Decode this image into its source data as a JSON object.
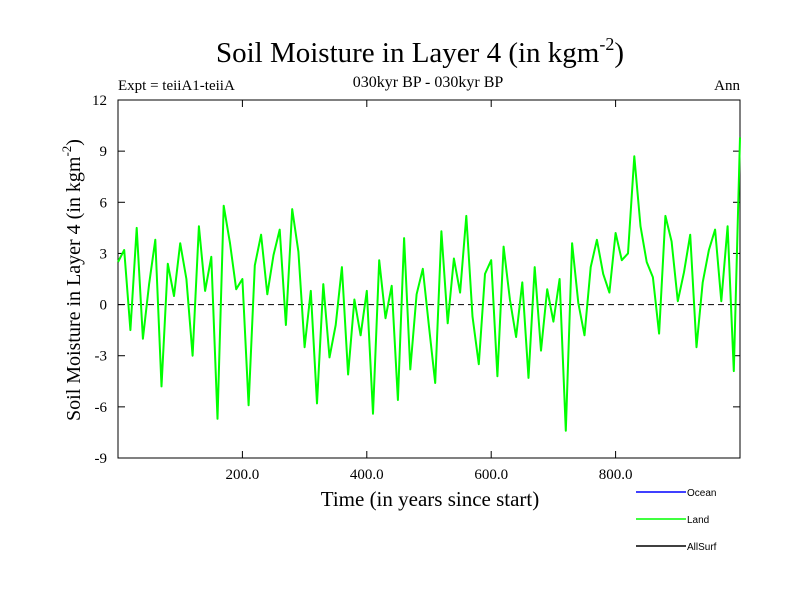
{
  "chart_data": {
    "type": "line",
    "title": "Soil Moisture in Layer 4 (in kgm",
    "title_sup": "-2",
    "title_close": ")",
    "subtitle": "030kyr BP - 030kyr BP",
    "left_label": "Expt = teiiA1-teiiA",
    "right_label": "Ann",
    "xlabel": "Time (in years since start)",
    "ylabel": "Soil Moisture in Layer 4 (in kgm",
    "ylabel_sup": "-2",
    "ylabel_close": ")",
    "xlim": [
      0,
      1000
    ],
    "ylim": [
      -9,
      12
    ],
    "x_ticks": [
      200,
      400,
      600,
      800
    ],
    "x_tick_labels": [
      "200.0",
      "400.0",
      "600.0",
      "800.0"
    ],
    "y_ticks": [
      -9,
      -6,
      -3,
      0,
      3,
      6,
      9,
      12
    ],
    "y_tick_labels": [
      "-9",
      "-6",
      "-3",
      "0",
      "3",
      "6",
      "9",
      "12"
    ],
    "zero_line": true,
    "legend_position": "bottom-right",
    "series": [
      {
        "name": "Ocean",
        "color": "#0000ff",
        "x": [],
        "values": []
      },
      {
        "name": "Land",
        "color": "#00ff00",
        "x": [
          0,
          10,
          20,
          30,
          40,
          50,
          60,
          70,
          80,
          90,
          100,
          110,
          120,
          130,
          140,
          150,
          160,
          170,
          180,
          190,
          200,
          210,
          220,
          230,
          240,
          250,
          260,
          270,
          280,
          290,
          300,
          310,
          320,
          330,
          340,
          350,
          360,
          370,
          380,
          390,
          400,
          410,
          420,
          430,
          440,
          450,
          460,
          470,
          480,
          490,
          500,
          510,
          520,
          530,
          540,
          550,
          560,
          570,
          580,
          590,
          600,
          610,
          620,
          630,
          640,
          650,
          660,
          670,
          680,
          690,
          700,
          710,
          720,
          730,
          740,
          750,
          760,
          770,
          780,
          790,
          800,
          810,
          820,
          830,
          840,
          850,
          860,
          870,
          880,
          890,
          900,
          910,
          920,
          930,
          940,
          950,
          960,
          970,
          980,
          990,
          1000
        ],
        "values": [
          2.5,
          3.2,
          -1.5,
          4.5,
          -2.0,
          1.2,
          3.8,
          -4.8,
          2.4,
          0.5,
          3.6,
          1.5,
          -3.0,
          4.6,
          0.8,
          2.8,
          -6.7,
          5.8,
          3.6,
          0.9,
          1.5,
          -5.9,
          2.3,
          4.1,
          0.6,
          2.9,
          4.4,
          -1.2,
          5.6,
          3.1,
          -2.5,
          0.8,
          -5.8,
          1.2,
          -3.1,
          -1.2,
          2.2,
          -4.1,
          0.3,
          -1.8,
          0.8,
          -6.4,
          2.6,
          -0.8,
          1.1,
          -5.6,
          3.9,
          -3.8,
          0.6,
          2.1,
          -1.3,
          -4.6,
          4.3,
          -1.1,
          2.7,
          0.7,
          5.2,
          -0.7,
          -3.5,
          1.8,
          2.6,
          -4.2,
          3.4,
          0.3,
          -1.9,
          1.3,
          -4.3,
          2.2,
          -2.7,
          0.9,
          -1.0,
          1.5,
          -7.4,
          3.6,
          0.1,
          -1.8,
          2.2,
          3.8,
          1.8,
          0.7,
          4.2,
          2.6,
          3.0,
          8.7,
          4.6,
          2.5,
          1.6,
          -1.7,
          5.2,
          3.7,
          0.2,
          1.9,
          4.1,
          -2.5,
          1.3,
          3.2,
          4.4,
          0.2,
          4.6,
          -3.9,
          9.8
        ]
      },
      {
        "name": "AllSurf",
        "color": "#000000",
        "x": [],
        "values": []
      }
    ]
  }
}
